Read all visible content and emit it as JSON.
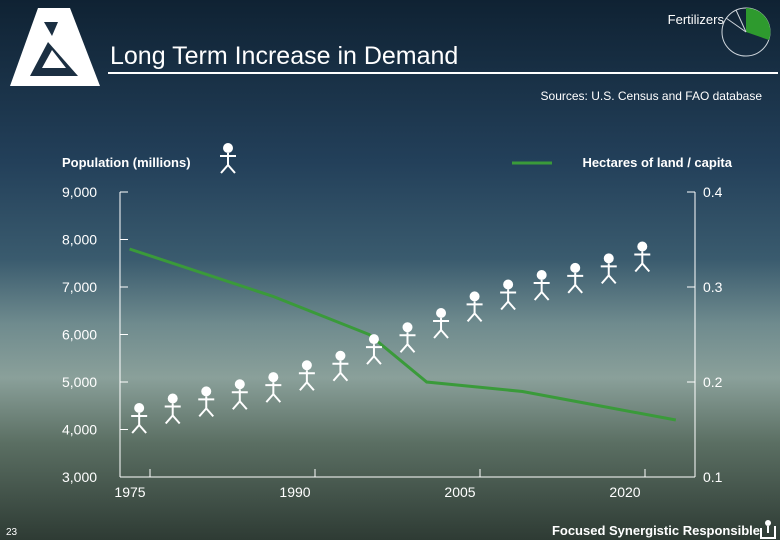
{
  "slide": {
    "corner_tag": "Fertilizers",
    "title": "Long Term Increase in Demand",
    "sources": "Sources: U.S. Census and FAO database",
    "slide_number": "23",
    "footer": "Focused Synergistic Responsible"
  },
  "colors": {
    "line": "#3a9a3a",
    "axis": "#ffffff",
    "text": "#ffffff",
    "pie_slice": "#2e9a2e"
  },
  "chart_data": {
    "type": "line",
    "left_axis": {
      "label": "Population (millions)",
      "ticks": [
        "9,000",
        "8,000",
        "7,000",
        "6,000",
        "5,000",
        "4,000",
        "3,000"
      ],
      "range": [
        3000,
        9000
      ]
    },
    "right_axis": {
      "label": "Hectares of land / capita",
      "ticks": [
        "0.4",
        "0.3",
        "0.2",
        "0.1"
      ],
      "range": [
        0.1,
        0.4
      ]
    },
    "x_axis": {
      "ticks": [
        "1975",
        "1990",
        "2005",
        "2020"
      ],
      "range": [
        1970,
        2030
      ]
    },
    "series": [
      {
        "name": "Hectares of land / capita",
        "axis": "right",
        "x": [
          1971,
          1986,
          1996,
          2002,
          2012,
          2020,
          2028
        ],
        "values": [
          0.34,
          0.29,
          0.25,
          0.2,
          0.19,
          0.175,
          0.16
        ]
      },
      {
        "name": "Population (millions)",
        "axis": "left",
        "marker": "person",
        "x": [
          1972,
          1975.5,
          1979,
          1982.5,
          1986,
          1989.5,
          1993,
          1996.5,
          2000,
          2003.5,
          2007,
          2010.5,
          2014,
          2017.5,
          2021,
          2024.5
        ],
        "values": [
          4200,
          4400,
          4550,
          4700,
          4850,
          5100,
          5300,
          5650,
          5900,
          6200,
          6550,
          6800,
          7000,
          7150,
          7350,
          7600
        ]
      }
    ]
  }
}
